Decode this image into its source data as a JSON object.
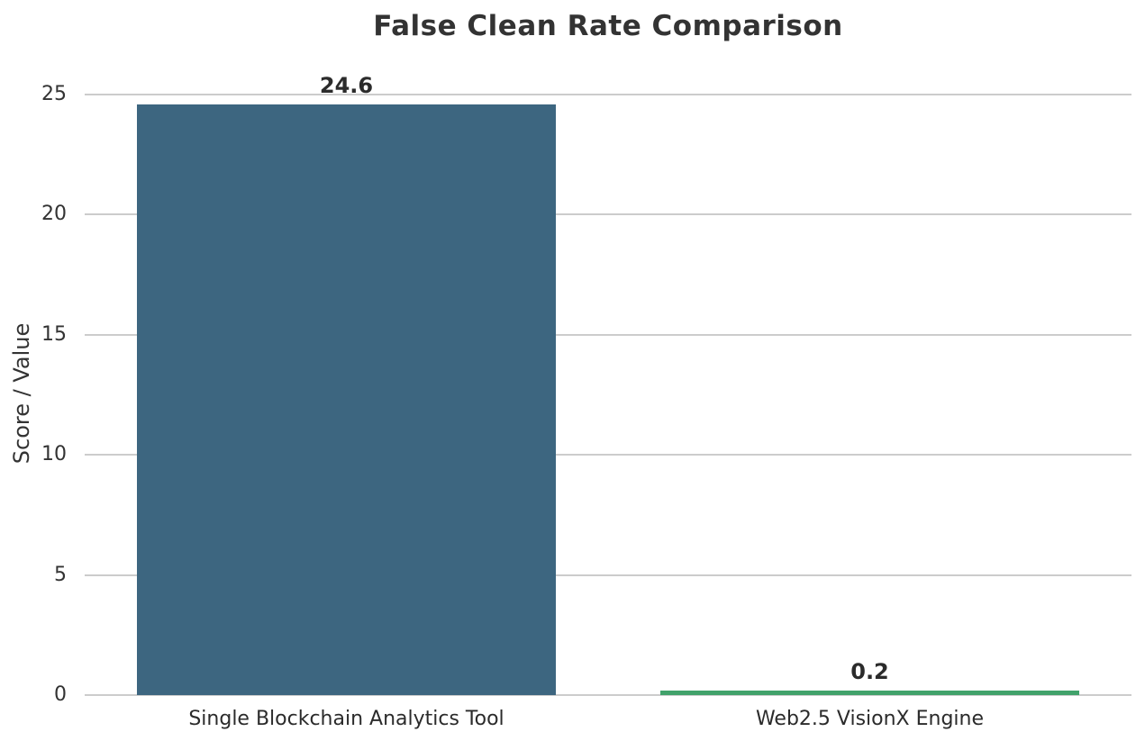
{
  "chart_data": {
    "type": "bar",
    "title": "False Clean Rate Comparison",
    "xlabel": "",
    "ylabel": "Score / Value",
    "categories": [
      "Single Blockchain Analytics Tool",
      "Web2.5 VisionX Engine"
    ],
    "values": [
      24.6,
      0.2
    ],
    "value_labels": [
      "24.6",
      "0.2"
    ],
    "bar_colors": [
      "#3d6680",
      "#41a26b"
    ],
    "yticks": [
      0,
      5,
      10,
      15,
      20,
      25
    ],
    "ylim": [
      0,
      25.75
    ],
    "grid": "horizontal",
    "gridline_color": "#cccccc",
    "background_color": "#ffffff",
    "text_color": "#333333",
    "legend": "none",
    "bar_width_fraction": 0.8
  }
}
